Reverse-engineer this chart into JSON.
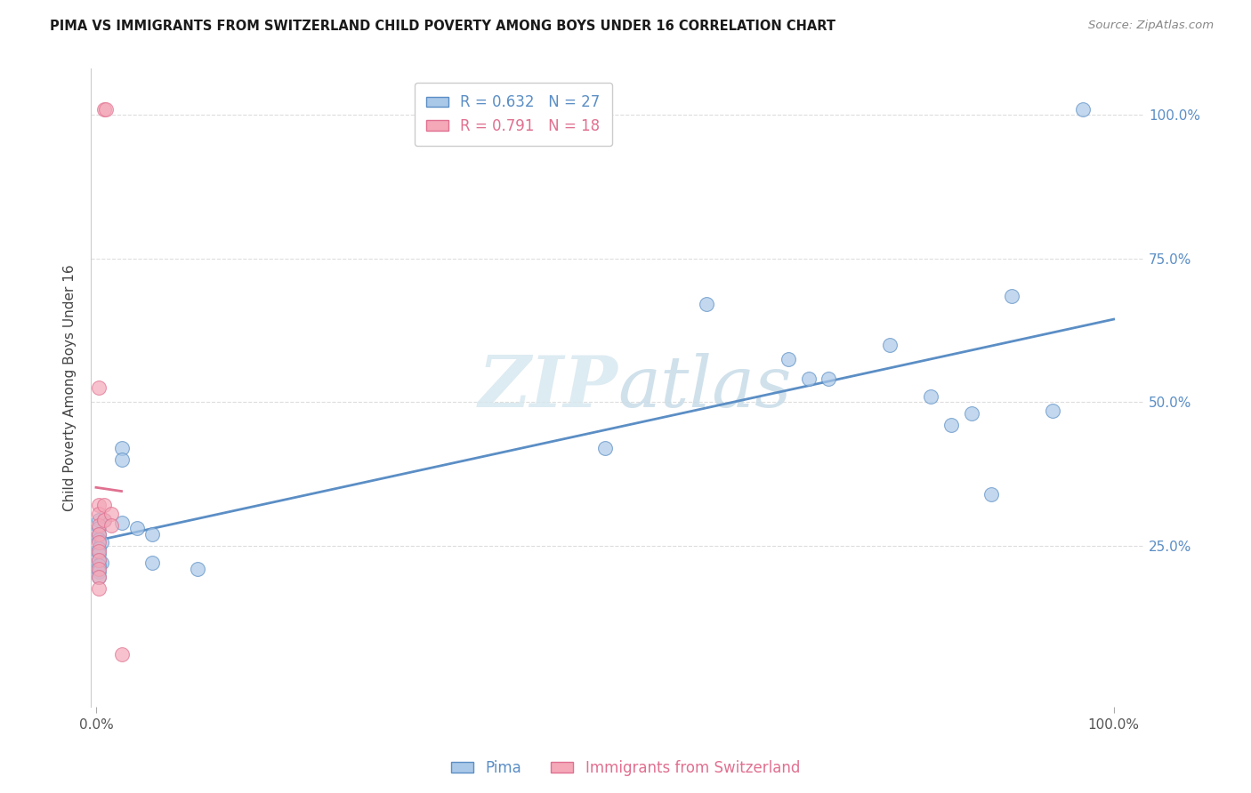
{
  "title": "PIMA VS IMMIGRANTS FROM SWITZERLAND CHILD POVERTY AMONG BOYS UNDER 16 CORRELATION CHART",
  "source": "Source: ZipAtlas.com",
  "ylabel": "Child Poverty Among Boys Under 16",
  "watermark": "ZIPatlas",
  "pima_points": [
    [
      0.003,
      0.295
    ],
    [
      0.008,
      0.295
    ],
    [
      0.003,
      0.28
    ],
    [
      0.003,
      0.27
    ],
    [
      0.003,
      0.26
    ],
    [
      0.005,
      0.255
    ],
    [
      0.003,
      0.245
    ],
    [
      0.003,
      0.235
    ],
    [
      0.003,
      0.225
    ],
    [
      0.005,
      0.22
    ],
    [
      0.003,
      0.215
    ],
    [
      0.003,
      0.205
    ],
    [
      0.003,
      0.195
    ],
    [
      0.025,
      0.42
    ],
    [
      0.025,
      0.4
    ],
    [
      0.025,
      0.29
    ],
    [
      0.04,
      0.28
    ],
    [
      0.055,
      0.27
    ],
    [
      0.055,
      0.22
    ],
    [
      0.1,
      0.21
    ],
    [
      0.5,
      0.42
    ],
    [
      0.6,
      0.67
    ],
    [
      0.68,
      0.575
    ],
    [
      0.7,
      0.54
    ],
    [
      0.72,
      0.54
    ],
    [
      0.78,
      0.6
    ],
    [
      0.82,
      0.51
    ],
    [
      0.84,
      0.46
    ],
    [
      0.86,
      0.48
    ],
    [
      0.88,
      0.34
    ],
    [
      0.9,
      0.685
    ],
    [
      0.94,
      0.485
    ],
    [
      0.97,
      1.01
    ]
  ],
  "swiss_points": [
    [
      0.008,
      1.01
    ],
    [
      0.01,
      1.01
    ],
    [
      0.003,
      0.525
    ],
    [
      0.003,
      0.32
    ],
    [
      0.003,
      0.305
    ],
    [
      0.003,
      0.285
    ],
    [
      0.003,
      0.27
    ],
    [
      0.003,
      0.255
    ],
    [
      0.003,
      0.24
    ],
    [
      0.003,
      0.225
    ],
    [
      0.003,
      0.21
    ],
    [
      0.003,
      0.195
    ],
    [
      0.003,
      0.175
    ],
    [
      0.008,
      0.32
    ],
    [
      0.008,
      0.295
    ],
    [
      0.015,
      0.305
    ],
    [
      0.015,
      0.285
    ],
    [
      0.025,
      0.06
    ]
  ],
  "pima_line_color": "#5b8ec5",
  "swiss_line_color": "#e07090",
  "pima_scatter_color": "#aac8e8",
  "swiss_scatter_color": "#f4a8b8",
  "background_color": "#ffffff",
  "grid_color": "#dddddd",
  "ytick_positions": [
    0.25,
    0.5,
    0.75,
    1.0
  ],
  "ytick_labels": [
    "25.0%",
    "50.0%",
    "75.0%",
    "100.0%"
  ],
  "xtick_positions": [
    0.0,
    1.0
  ],
  "xtick_labels": [
    "0.0%",
    "100.0%"
  ]
}
